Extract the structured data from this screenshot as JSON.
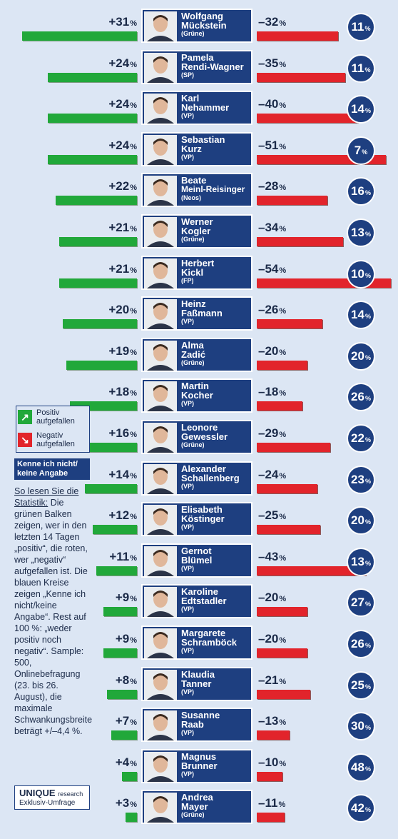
{
  "chart_data": {
    "type": "bar",
    "series": [
      {
        "name": "Positiv aufgefallen",
        "color": "#21a83a"
      },
      {
        "name": "Negativ aufgefallen",
        "color": "#e2242b"
      },
      {
        "name": "Kenne ich nicht/ keine Angabe",
        "color": "#1e3f80"
      }
    ],
    "rows": [
      {
        "first": "Wolfgang",
        "last": "Mückstein",
        "party": "(Grüne)",
        "positive": 31,
        "negative": 32,
        "unknown": 11
      },
      {
        "first": "Pamela",
        "last": "Rendi-Wagner",
        "party": "(SP)",
        "positive": 24,
        "negative": 35,
        "unknown": 11
      },
      {
        "first": "Karl",
        "last": "Nehammer",
        "party": "(VP)",
        "positive": 24,
        "negative": 40,
        "unknown": 14
      },
      {
        "first": "Sebastian",
        "last": "Kurz",
        "party": "(VP)",
        "positive": 24,
        "negative": 51,
        "unknown": 7
      },
      {
        "first": "Beate",
        "last": "Meinl-Reisinger",
        "party": "(Neos)",
        "positive": 22,
        "negative": 28,
        "unknown": 16
      },
      {
        "first": "Werner",
        "last": "Kogler",
        "party": "(Grüne)",
        "positive": 21,
        "negative": 34,
        "unknown": 13
      },
      {
        "first": "Herbert",
        "last": "Kickl",
        "party": "(FP)",
        "positive": 21,
        "negative": 54,
        "unknown": 10
      },
      {
        "first": "Heinz",
        "last": "Faßmann",
        "party": "(VP)",
        "positive": 20,
        "negative": 26,
        "unknown": 14
      },
      {
        "first": "Alma",
        "last": "Zadić",
        "party": "(Grüne)",
        "positive": 19,
        "negative": 20,
        "unknown": 20
      },
      {
        "first": "Martin",
        "last": "Kocher",
        "party": "(VP)",
        "positive": 18,
        "negative": 18,
        "unknown": 26
      },
      {
        "first": "Leonore",
        "last": "Gewessler",
        "party": "(Grüne)",
        "positive": 16,
        "negative": 29,
        "unknown": 22
      },
      {
        "first": "Alexander",
        "last": "Schallenberg",
        "party": "(VP)",
        "positive": 14,
        "negative": 24,
        "unknown": 23
      },
      {
        "first": "Elisabeth",
        "last": "Köstinger",
        "party": "(VP)",
        "positive": 12,
        "negative": 25,
        "unknown": 20
      },
      {
        "first": "Gernot",
        "last": "Blümel",
        "party": "(VP)",
        "positive": 11,
        "negative": 43,
        "unknown": 13
      },
      {
        "first": "Karoline",
        "last": "Edtstadler",
        "party": "(VP)",
        "positive": 9,
        "negative": 20,
        "unknown": 27
      },
      {
        "first": "Margarete",
        "last": "Schramböck",
        "party": "(VP)",
        "positive": 9,
        "negative": 20,
        "unknown": 26
      },
      {
        "first": "Klaudia",
        "last": "Tanner",
        "party": "(VP)",
        "positive": 8,
        "negative": 21,
        "unknown": 25
      },
      {
        "first": "Susanne",
        "last": "Raab",
        "party": "(VP)",
        "positive": 7,
        "negative": 13,
        "unknown": 30
      },
      {
        "first": "Magnus",
        "last": "Brunner",
        "party": "(VP)",
        "positive": 4,
        "negative": 10,
        "unknown": 48
      },
      {
        "first": "Andrea",
        "last": "Mayer",
        "party": "(Grüne)",
        "positive": 3,
        "negative": 11,
        "unknown": 42
      }
    ]
  },
  "legend": {
    "positive_label": "Positiv aufgefallen",
    "negative_label": "Negativ aufgefallen",
    "unknown_label": "Kenne ich nicht/ keine Angabe",
    "positive_icon": "arrow-up-right-icon",
    "negative_icon": "arrow-down-right-icon"
  },
  "howto": {
    "title": "So lesen Sie die Statistik:",
    "text": "Die grünen Balken zeigen, wer in den letzten 14 Tagen „positiv“, die roten, wer „negativ“ aufgefallen ist. Die blauen Kreise zeigen „Kenne ich nicht/keine Angabe“. Rest auf 100 %: „weder positiv noch negativ“. Sample: 500, Onlinebefragung (23. bis 26. August), die maximale Schwankungsbreite beträgt +/–4,4 %."
  },
  "brand": {
    "logo": "UNIQUE",
    "logo_suffix": "research",
    "subtitle": "Exklusiv-Umfrage"
  }
}
